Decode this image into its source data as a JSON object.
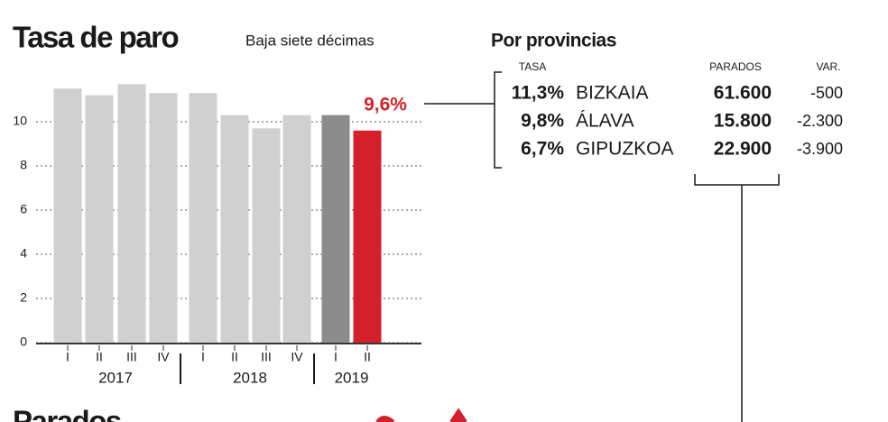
{
  "chart_data": {
    "type": "bar",
    "title": "Tasa de paro",
    "subtitle": "Baja siete décimas",
    "groups": [
      {
        "label": "2017",
        "categories": [
          "I",
          "II",
          "III",
          "IV"
        ]
      },
      {
        "label": "2018",
        "categories": [
          "I",
          "II",
          "III",
          "IV"
        ]
      },
      {
        "label": "2019",
        "categories": [
          "I",
          "II"
        ]
      }
    ],
    "values": [
      11.5,
      11.2,
      11.7,
      11.3,
      11.3,
      10.3,
      9.7,
      10.3,
      10.3,
      9.6
    ],
    "value_labels": [
      null,
      null,
      null,
      null,
      null,
      null,
      null,
      null,
      null,
      "9,6%"
    ],
    "colors": [
      "#d0d0d0",
      "#d0d0d0",
      "#d0d0d0",
      "#d0d0d0",
      "#d0d0d0",
      "#d0d0d0",
      "#d0d0d0",
      "#d0d0d0",
      "#8c8c8e",
      "#d4202a"
    ],
    "ylim": [
      0,
      12
    ],
    "yticks": [
      0,
      2,
      4,
      6,
      8,
      10
    ],
    "grid": true
  },
  "provinces": {
    "title": "Por provincias",
    "columns": [
      "TASA",
      "PARADOS",
      "VAR."
    ],
    "rows": [
      [
        "11,3%",
        "BIZKAIA",
        "61.600",
        "-500"
      ],
      [
        "9,8%",
        "ÁLAVA",
        "15.800",
        "-2.300"
      ],
      [
        "6,7%",
        "GIPUZKOA",
        "22.900",
        "-3.900"
      ]
    ]
  },
  "next_section": "Parados"
}
